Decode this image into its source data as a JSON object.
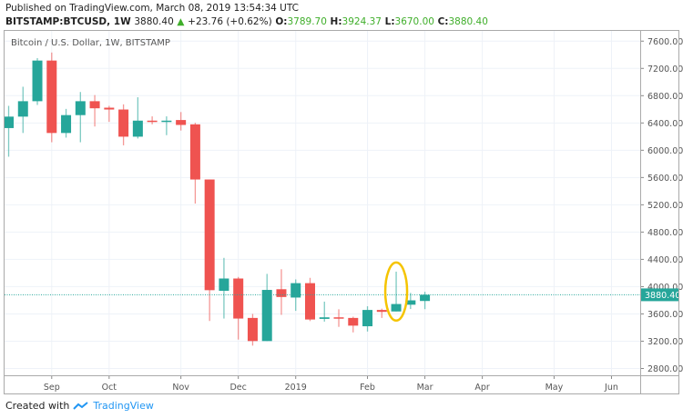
{
  "header": {
    "published": "Published on TradingView.com, March 08, 2019 13:54:34 UTC",
    "symbol": "BITSTAMP:BTCUSD, 1W",
    "last": "3880.40",
    "change": "+23.76 (+0.62%)",
    "o_label": "O:",
    "o": "3789.70",
    "h_label": "H:",
    "h": "3924.37",
    "l_label": "L:",
    "l": "3670.00",
    "c_label": "C:",
    "c": "3880.40"
  },
  "footer": {
    "created_with": "Created with",
    "brand": "TradingView"
  },
  "colors": {
    "up": "#26a69a",
    "down": "#ef5350",
    "highlight": "#f5c400",
    "grid": "#eef2f8"
  },
  "chart_data": {
    "type": "candlestick",
    "title": "Bitcoin / U.S. Dollar, 1W, BITSTAMP",
    "ylim": [
      2700,
      7750
    ],
    "yticks": [
      "7600.00",
      "7200.00",
      "6800.00",
      "6400.00",
      "6000.00",
      "5600.00",
      "5200.00",
      "4800.00",
      "4400.00",
      "4000.00",
      "3600.00",
      "3200.00",
      "2800.00"
    ],
    "xticks": [
      {
        "label": "Sep",
        "date": "2018-09-03"
      },
      {
        "label": "Oct",
        "date": "2018-10-01"
      },
      {
        "label": "Nov",
        "date": "2018-11-05"
      },
      {
        "label": "Dec",
        "date": "2018-12-03"
      },
      {
        "label": "2019",
        "date": "2018-12-31"
      },
      {
        "label": "Feb",
        "date": "2019-02-04"
      },
      {
        "label": "Mar",
        "date": "2019-03-04"
      },
      {
        "label": "Apr",
        "date": "2019-04-01"
      },
      {
        "label": "May",
        "date": "2019-05-06"
      },
      {
        "label": "Jun",
        "date": "2019-06-03"
      }
    ],
    "xlim": [
      "2018-08-11",
      "2019-06-17"
    ],
    "last_price_label": "3880.40",
    "last_price": 3880.4,
    "highlighted_date": "2019-02-18",
    "grid": true,
    "candles": [
      {
        "d": "2018-08-13",
        "o": 6325,
        "h": 6651,
        "l": 5905,
        "c": 6493
      },
      {
        "d": "2018-08-20",
        "o": 6493,
        "h": 6931,
        "l": 6253,
        "c": 6719
      },
      {
        "d": "2018-08-27",
        "o": 6719,
        "h": 7351,
        "l": 6664,
        "c": 7315
      },
      {
        "d": "2018-09-03",
        "o": 7315,
        "h": 7433,
        "l": 6117,
        "c": 6253
      },
      {
        "d": "2018-09-10",
        "o": 6253,
        "h": 6606,
        "l": 6185,
        "c": 6515
      },
      {
        "d": "2018-09-17",
        "o": 6515,
        "h": 6854,
        "l": 6117,
        "c": 6719
      },
      {
        "d": "2018-09-24",
        "o": 6719,
        "h": 6809,
        "l": 6348,
        "c": 6615
      },
      {
        "d": "2018-10-01",
        "o": 6624,
        "h": 6651,
        "l": 6416,
        "c": 6597
      },
      {
        "d": "2018-10-08",
        "o": 6597,
        "h": 6673,
        "l": 6072,
        "c": 6199
      },
      {
        "d": "2018-10-15",
        "o": 6199,
        "h": 6777,
        "l": 6172,
        "c": 6434
      },
      {
        "d": "2018-10-22",
        "o": 6434,
        "h": 6497,
        "l": 6380,
        "c": 6416
      },
      {
        "d": "2018-10-29",
        "o": 6416,
        "h": 6497,
        "l": 6221,
        "c": 6434
      },
      {
        "d": "2018-11-05",
        "o": 6443,
        "h": 6560,
        "l": 6289,
        "c": 6371
      },
      {
        "d": "2018-11-12",
        "o": 6380,
        "h": 6402,
        "l": 5218,
        "c": 5571
      },
      {
        "d": "2018-11-19",
        "o": 5571,
        "h": 5571,
        "l": 3496,
        "c": 3948
      },
      {
        "d": "2018-11-26",
        "o": 3939,
        "h": 4422,
        "l": 3532,
        "c": 4119
      },
      {
        "d": "2018-12-03",
        "o": 4119,
        "h": 4142,
        "l": 3224,
        "c": 3532
      },
      {
        "d": "2018-12-10",
        "o": 3541,
        "h": 3600,
        "l": 3135,
        "c": 3202
      },
      {
        "d": "2018-12-17",
        "o": 3202,
        "h": 4187,
        "l": 3202,
        "c": 3952
      },
      {
        "d": "2018-12-24",
        "o": 3962,
        "h": 4255,
        "l": 3586,
        "c": 3848
      },
      {
        "d": "2018-12-31",
        "o": 3840,
        "h": 4106,
        "l": 3645,
        "c": 4051
      },
      {
        "d": "2019-01-07",
        "o": 4051,
        "h": 4129,
        "l": 3495,
        "c": 3518
      },
      {
        "d": "2019-01-14",
        "o": 3527,
        "h": 3780,
        "l": 3487,
        "c": 3550
      },
      {
        "d": "2019-01-21",
        "o": 3550,
        "h": 3668,
        "l": 3410,
        "c": 3532
      },
      {
        "d": "2019-01-28",
        "o": 3541,
        "h": 3559,
        "l": 3329,
        "c": 3428
      },
      {
        "d": "2019-02-04",
        "o": 3419,
        "h": 3712,
        "l": 3342,
        "c": 3658
      },
      {
        "d": "2019-02-11",
        "o": 3658,
        "h": 3677,
        "l": 3541,
        "c": 3630
      },
      {
        "d": "2019-02-18",
        "o": 3636,
        "h": 4220,
        "l": 3636,
        "c": 3745
      },
      {
        "d": "2019-02-25",
        "o": 3735,
        "h": 3908,
        "l": 3672,
        "c": 3799
      },
      {
        "d": "2019-03-04",
        "o": 3789.7,
        "h": 3924.37,
        "l": 3670,
        "c": 3880.4
      }
    ]
  }
}
